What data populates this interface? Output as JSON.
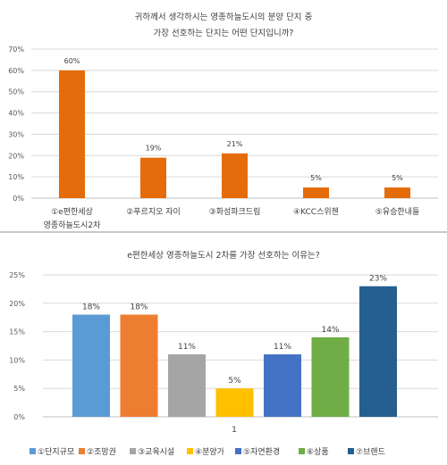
{
  "colors": {
    "chart1_bar": "#e46c0a"
  },
  "chart_data": [
    {
      "type": "bar",
      "title": [
        "귀하께서 생각하시는 영종하늘도시의 분양 단지 중",
        "가장 선호하는 단지는 어떤 단지입니까?"
      ],
      "categories": [
        [
          "①e편한세상",
          "영종하늘도시2차"
        ],
        [
          "②푸르지오 자이"
        ],
        [
          "③화성파크드림"
        ],
        [
          "④KCC스위첸"
        ],
        [
          "⑤유승한내들"
        ]
      ],
      "values": [
        60,
        19,
        21,
        5,
        5
      ],
      "data_labels": [
        "60%",
        "19%",
        "21%",
        "5%",
        "5%"
      ],
      "ylim": [
        0,
        70
      ],
      "yticks": [
        "0%",
        "10%",
        "20%",
        "30%",
        "40%",
        "50%",
        "60%",
        "70%"
      ],
      "grid": true
    },
    {
      "type": "bar",
      "title": "e편한세상 영종하늘도시 2차를 가장 선호하는 이유는?",
      "categories": [
        "1"
      ],
      "series": [
        {
          "name": "①단지규모",
          "values": [
            18
          ],
          "label": "18%",
          "color": "#5b9bd5"
        },
        {
          "name": "②조망권",
          "values": [
            18
          ],
          "label": "18%",
          "color": "#ed7d31"
        },
        {
          "name": "③교육시설",
          "values": [
            11
          ],
          "label": "11%",
          "color": "#a5a5a5"
        },
        {
          "name": "④분양가",
          "values": [
            5
          ],
          "label": "5%",
          "color": "#ffc000"
        },
        {
          "name": "⑤자연환경",
          "values": [
            11
          ],
          "label": "11%",
          "color": "#4472c4"
        },
        {
          "name": "⑥상품",
          "values": [
            14
          ],
          "label": "14%",
          "color": "#70ad47"
        },
        {
          "name": "⑦브랜드",
          "values": [
            23
          ],
          "label": "23%",
          "color": "#255e91"
        }
      ],
      "ylim": [
        0,
        25
      ],
      "yticks": [
        "0%",
        "5%",
        "10%",
        "15%",
        "20%",
        "25%"
      ],
      "grid": true,
      "legend": "bottom"
    }
  ]
}
